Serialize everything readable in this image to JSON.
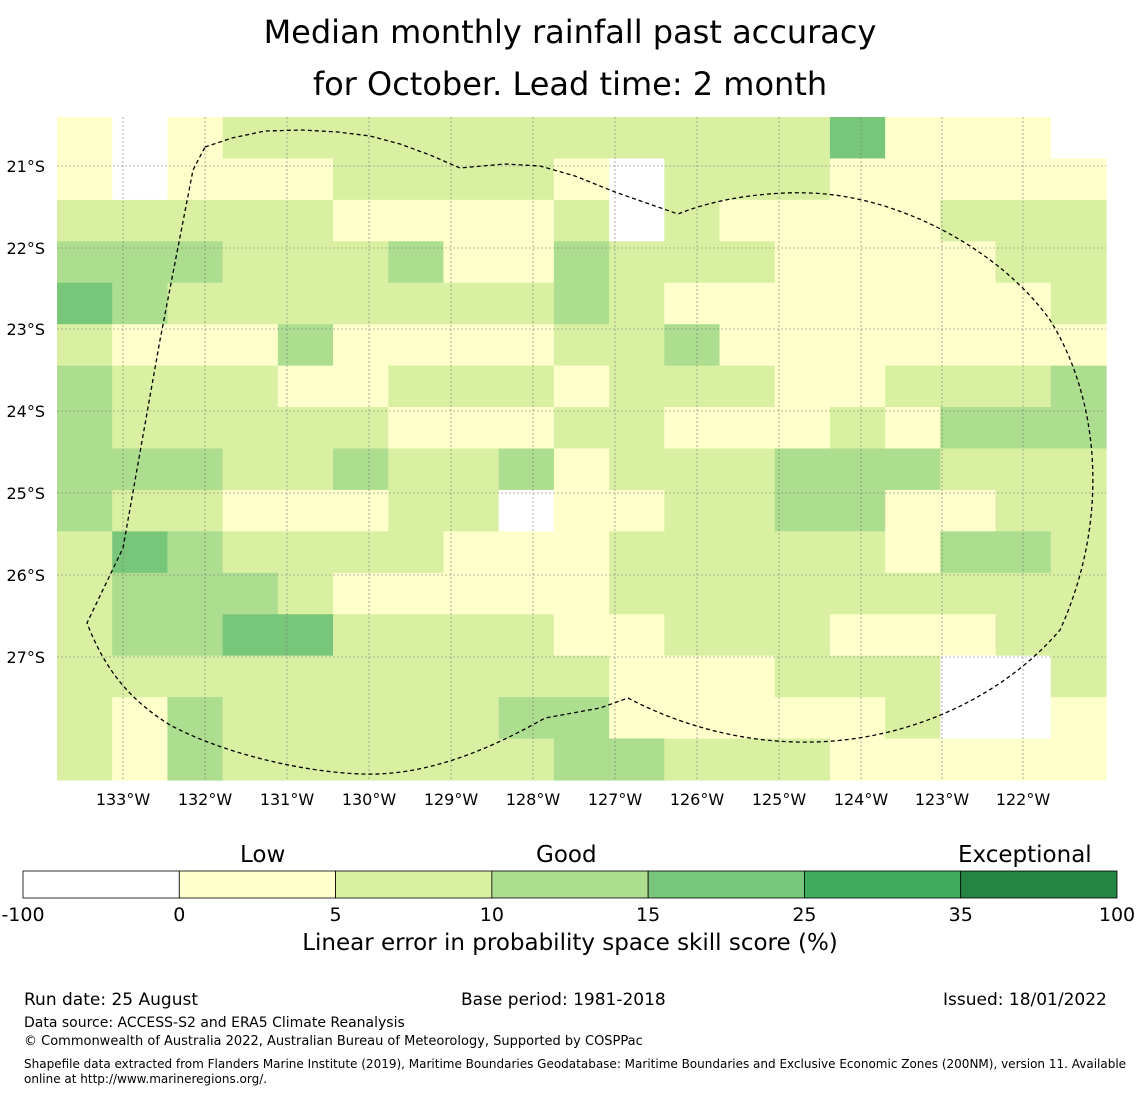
{
  "title": {
    "line1": "Median monthly rainfall past accuracy",
    "line2": "for October. Lead time: 2 month"
  },
  "map": {
    "lat_labels": [
      "21°S",
      "22°S",
      "23°S",
      "24°S",
      "25°S",
      "26°S",
      "27°S"
    ],
    "lon_labels": [
      "133°W",
      "132°W",
      "131°W",
      "130°W",
      "129°W",
      "128°W",
      "127°W",
      "126°W",
      "125°W",
      "124°W",
      "123°W",
      "122°W"
    ],
    "palette": [
      "#ffffff",
      "#ffffcc",
      "#d9f0a3",
      "#addd8e",
      "#78c679",
      "#41ab5d",
      "#238443"
    ],
    "grid_rows": [
      "1012222222222241110",
      "1011122221022211111",
      "2222211112021111222",
      "3332223113222111122",
      "4322222223211111112",
      "2111311112231111111",
      "3222112221222112223",
      "3222221112211121333",
      "3332232231222333222",
      "3221112201122331122",
      "2432222111222221332",
      "2333211111222222222",
      "2334422221122211122",
      "2222222222111222002",
      "2132222233111112001",
      "2132222223322211111"
    ],
    "grid_value_note": "",
    "boundary_line": "dashed"
  },
  "colorbar": {
    "categories": [
      "Low",
      "Good",
      "Exceptional"
    ],
    "ticks": [
      "-100",
      "0",
      "5",
      "10",
      "15",
      "25",
      "35",
      "100"
    ],
    "colors": [
      "#ffffff",
      "#ffffcc",
      "#d9f0a3",
      "#addd8e",
      "#78c679",
      "#41ab5d",
      "#238443"
    ],
    "label": "Linear error in probability space skill score (%)"
  },
  "footer": {
    "run_date": "Run date: 25 August",
    "base_period": "Base period: 1981-2018",
    "issued": "Issued: 18/01/2022",
    "data_source": "Data source: ACCESS-S2 and ERA5 Climate Reanalysis",
    "copyright": "© Commonwealth of Australia 2022, Australian Bureau of Meteorology, Supported by COSPPac",
    "shapefile": "Shapefile data extracted from Flanders Marine Institute (2019), Maritime Boundaries Geodatabase: Maritime Boundaries and Exclusive Economic Zones (200NM), version 11. Available online at http://www.marineregions.org/."
  }
}
